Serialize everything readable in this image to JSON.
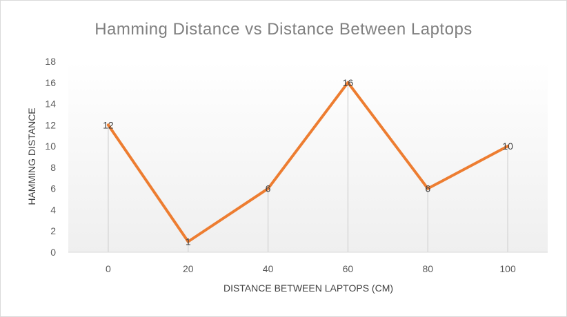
{
  "chart_data": {
    "type": "line",
    "title": "Hamming Distance vs Distance Between Laptops",
    "xlabel": "DISTANCE BETWEEN LAPTOPS (CM)",
    "ylabel": "HAMMING DISTANCE",
    "categories": [
      "0",
      "20",
      "40",
      "60",
      "80",
      "100"
    ],
    "series": [
      {
        "values": [
          12,
          1,
          6,
          16,
          6,
          10
        ],
        "color": "#ed7d31"
      }
    ],
    "ylim": [
      0,
      18
    ],
    "yticks": [
      "0",
      "2",
      "4",
      "6",
      "8",
      "10",
      "12",
      "14",
      "16",
      "18"
    ],
    "data_labels": [
      "12",
      "1",
      "6",
      "16",
      "6",
      "10"
    ],
    "drop_lines": true,
    "grid": false,
    "legend": "none"
  }
}
